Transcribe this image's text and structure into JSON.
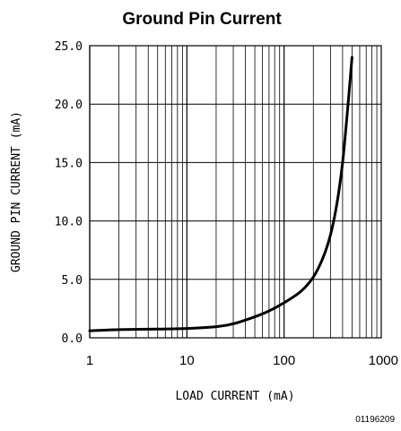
{
  "chart_data": {
    "type": "line",
    "title": "Ground Pin Current",
    "xlabel": "LOAD CURRENT (mA)",
    "ylabel": "GROUND PIN CURRENT (mA)",
    "x_scale": "log",
    "xlim": [
      1,
      1000
    ],
    "ylim": [
      0,
      25
    ],
    "x_ticks": [
      "1",
      "10",
      "100",
      "1000"
    ],
    "y_ticks": [
      "0.0",
      "5.0",
      "10.0",
      "15.0",
      "20.0",
      "25.0"
    ],
    "grid": true,
    "series": [
      {
        "x": [
          1,
          2,
          5,
          10,
          20,
          30,
          50,
          70,
          100,
          150,
          200,
          250,
          300,
          350,
          400,
          450,
          500
        ],
        "y": [
          0.6,
          0.7,
          0.75,
          0.8,
          0.95,
          1.2,
          1.8,
          2.3,
          3.0,
          4.0,
          5.2,
          6.8,
          8.8,
          11.5,
          15.0,
          19.5,
          24.0
        ]
      }
    ],
    "figure_number": "01196209"
  }
}
